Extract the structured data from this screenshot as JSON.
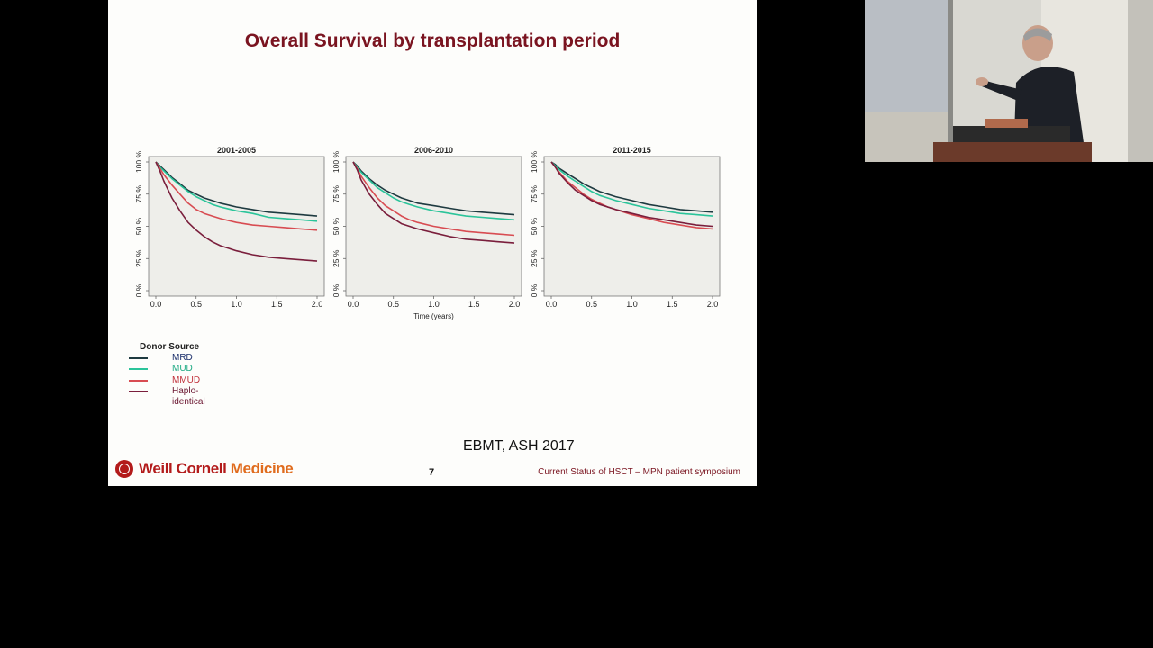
{
  "slide": {
    "title": "Overall Survival by transplantation period",
    "citation": "EBMT, ASH 2017",
    "page_number": "7",
    "footer_text": "Current Status of HSCT – MPN patient symposium",
    "logo": {
      "name": "Weill Cornell",
      "accent": "Medicine"
    }
  },
  "legend": {
    "title": "Donor Source",
    "items": [
      {
        "label": "MRD",
        "color": "#1e3a40",
        "text_color": "#1b2f6b"
      },
      {
        "label": "MUD",
        "color": "#2bc49a",
        "text_color": "#1faa84"
      },
      {
        "label": "MMUD",
        "color": "#d84c52",
        "text_color": "#c0303a"
      },
      {
        "label": "Haplo-identical",
        "color": "#7a1e3c",
        "text_color": "#6a1530"
      }
    ]
  },
  "chart_data": [
    {
      "type": "line",
      "title": "2001-2005",
      "xlabel": "",
      "ylabel": "",
      "xlim": [
        0,
        2
      ],
      "ylim": [
        0,
        100
      ],
      "x_ticks": [
        0,
        0.5,
        1,
        1.5,
        2
      ],
      "x_tick_labels": [
        "0.0",
        "0.5",
        "1.0",
        "1.5",
        "2.0"
      ],
      "y_ticks": [
        0,
        25,
        50,
        75,
        100
      ],
      "y_tick_labels": [
        "0 %",
        "25 %",
        "50 %",
        "75 %",
        "100 %"
      ],
      "grid": false,
      "x": [
        0,
        0.05,
        0.1,
        0.2,
        0.3,
        0.4,
        0.5,
        0.6,
        0.7,
        0.8,
        1.0,
        1.2,
        1.4,
        1.6,
        1.8,
        2.0
      ],
      "series": [
        {
          "name": "MRD",
          "values": [
            100,
            97,
            94,
            88,
            83,
            78,
            75,
            72,
            70,
            68,
            65,
            63,
            61,
            60,
            59,
            58
          ]
        },
        {
          "name": "MUD",
          "values": [
            100,
            96,
            93,
            87,
            82,
            77,
            73,
            70,
            67,
            65,
            62,
            60,
            57,
            56,
            55,
            54
          ]
        },
        {
          "name": "MMUD",
          "values": [
            100,
            95,
            90,
            82,
            75,
            68,
            63,
            60,
            58,
            56,
            53,
            51,
            50,
            49,
            48,
            47
          ]
        },
        {
          "name": "Haplo-identical",
          "values": [
            100,
            93,
            85,
            72,
            62,
            53,
            47,
            42,
            38,
            35,
            31,
            28,
            26,
            25,
            24,
            23
          ]
        }
      ]
    },
    {
      "type": "line",
      "title": "2006-2010",
      "xlabel": "Time (years)",
      "ylabel": "",
      "xlim": [
        0,
        2
      ],
      "ylim": [
        0,
        100
      ],
      "x_ticks": [
        0,
        0.5,
        1,
        1.5,
        2
      ],
      "x_tick_labels": [
        "0.0",
        "0.5",
        "1.0",
        "1.5",
        "2.0"
      ],
      "y_ticks": [
        0,
        25,
        50,
        75,
        100
      ],
      "y_tick_labels": [
        "0 %",
        "25 %",
        "50 %",
        "75 %",
        "100 %"
      ],
      "grid": false,
      "x": [
        0,
        0.05,
        0.1,
        0.2,
        0.3,
        0.4,
        0.5,
        0.6,
        0.7,
        0.8,
        1.0,
        1.2,
        1.4,
        1.6,
        1.8,
        2.0
      ],
      "series": [
        {
          "name": "MRD",
          "values": [
            100,
            97,
            93,
            87,
            82,
            78,
            75,
            72,
            70,
            68,
            66,
            64,
            62,
            61,
            60,
            59
          ]
        },
        {
          "name": "MUD",
          "values": [
            100,
            96,
            92,
            86,
            80,
            76,
            72,
            69,
            67,
            65,
            62,
            60,
            58,
            57,
            56,
            55
          ]
        },
        {
          "name": "MMUD",
          "values": [
            100,
            95,
            89,
            80,
            72,
            66,
            62,
            58,
            55,
            53,
            50,
            48,
            46,
            45,
            44,
            43
          ]
        },
        {
          "name": "Haplo-identical",
          "values": [
            100,
            94,
            86,
            75,
            67,
            60,
            56,
            52,
            50,
            48,
            45,
            42,
            40,
            39,
            38,
            37
          ]
        }
      ]
    },
    {
      "type": "line",
      "title": "2011-2015",
      "xlabel": "",
      "ylabel": "",
      "xlim": [
        0,
        2
      ],
      "ylim": [
        0,
        100
      ],
      "x_ticks": [
        0,
        0.5,
        1,
        1.5,
        2
      ],
      "x_tick_labels": [
        "0.0",
        "0.5",
        "1.0",
        "1.5",
        "2.0"
      ],
      "y_ticks": [
        0,
        25,
        50,
        75,
        100
      ],
      "y_tick_labels": [
        "0 %",
        "25 %",
        "50 %",
        "75 %",
        "100 %"
      ],
      "grid": false,
      "x": [
        0,
        0.05,
        0.1,
        0.2,
        0.3,
        0.4,
        0.5,
        0.6,
        0.7,
        0.8,
        1.0,
        1.2,
        1.4,
        1.6,
        1.8,
        2.0
      ],
      "series": [
        {
          "name": "MRD",
          "values": [
            100,
            98,
            95,
            91,
            87,
            83,
            80,
            77,
            75,
            73,
            70,
            67,
            65,
            63,
            62,
            61
          ]
        },
        {
          "name": "MUD",
          "values": [
            100,
            97,
            94,
            89,
            85,
            81,
            77,
            74,
            72,
            70,
            67,
            64,
            62,
            60,
            59,
            58
          ]
        },
        {
          "name": "MMUD",
          "values": [
            100,
            96,
            92,
            85,
            80,
            75,
            71,
            68,
            65,
            63,
            59,
            56,
            53,
            51,
            49,
            48
          ]
        },
        {
          "name": "Haplo-identical",
          "values": [
            100,
            96,
            91,
            84,
            78,
            74,
            70,
            67,
            65,
            63,
            60,
            57,
            55,
            53,
            51,
            50
          ]
        }
      ]
    }
  ]
}
